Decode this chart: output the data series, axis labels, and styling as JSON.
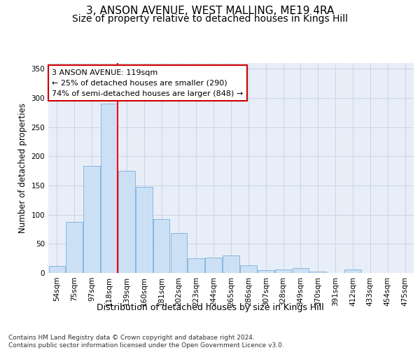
{
  "title": "3, ANSON AVENUE, WEST MALLING, ME19 4RA",
  "subtitle": "Size of property relative to detached houses in Kings Hill",
  "xlabel": "Distribution of detached houses by size in Kings Hill",
  "ylabel": "Number of detached properties",
  "categories": [
    "54sqm",
    "75sqm",
    "97sqm",
    "118sqm",
    "139sqm",
    "160sqm",
    "181sqm",
    "202sqm",
    "223sqm",
    "244sqm",
    "265sqm",
    "286sqm",
    "307sqm",
    "328sqm",
    "349sqm",
    "370sqm",
    "391sqm",
    "412sqm",
    "433sqm",
    "454sqm",
    "475sqm"
  ],
  "values": [
    12,
    88,
    184,
    290,
    175,
    148,
    92,
    68,
    25,
    26,
    30,
    13,
    5,
    6,
    8,
    3,
    0,
    6,
    0,
    0,
    0
  ],
  "bar_color": "#cce0f5",
  "bar_edge_color": "#7ab0d8",
  "red_line_index": 3,
  "annotation_text": "3 ANSON AVENUE: 119sqm\n← 25% of detached houses are smaller (290)\n74% of semi-detached houses are larger (848) →",
  "annotation_box_color": "#ffffff",
  "annotation_box_edge": "#cc0000",
  "ylim": [
    0,
    360
  ],
  "yticks": [
    0,
    50,
    100,
    150,
    200,
    250,
    300,
    350
  ],
  "grid_color": "#c8d4e8",
  "background_color": "#e8eef8",
  "footer": "Contains HM Land Registry data © Crown copyright and database right 2024.\nContains public sector information licensed under the Open Government Licence v3.0.",
  "title_fontsize": 11,
  "subtitle_fontsize": 10,
  "xlabel_fontsize": 9,
  "ylabel_fontsize": 8.5,
  "tick_fontsize": 7.5,
  "annotation_fontsize": 8,
  "footer_fontsize": 6.5
}
